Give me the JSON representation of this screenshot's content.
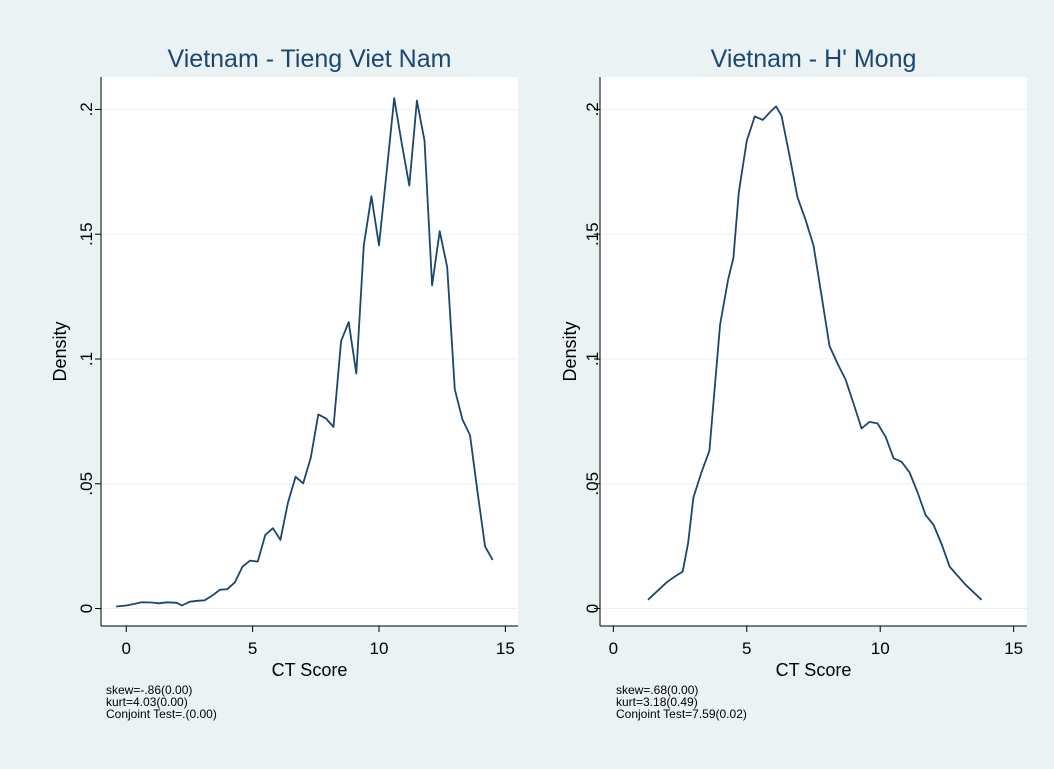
{
  "colors": {
    "outer_background": "#eaf2f3",
    "plot_background": "#ffffff",
    "gridline": "#eaf2f3",
    "line": "#1a476f",
    "text": "#000000"
  },
  "chart_data": [
    {
      "type": "line",
      "title": "Vietnam - Tieng Viet Nam",
      "xlabel": "CT Score",
      "ylabel": "Density",
      "xlim": [
        -1,
        15.5
      ],
      "ylim": [
        -0.007,
        0.213
      ],
      "x_ticks": [
        0,
        5,
        10,
        15
      ],
      "x_tick_labels": [
        "0",
        "5",
        "10",
        "15"
      ],
      "y_ticks": [
        0,
        0.05,
        0.1,
        0.15,
        0.2
      ],
      "y_tick_labels": [
        "0",
        ".05",
        ".1",
        ".15",
        ".2"
      ],
      "grid": true,
      "series": [
        {
          "x": [
            -0.4,
            0,
            0.3,
            0.6,
            1,
            1.3,
            1.6,
            2,
            2.2,
            2.5,
            2.8,
            3.1,
            3.4,
            3.7,
            4,
            4.3,
            4.6,
            4.9,
            5.2,
            5.5,
            5.8,
            6.1,
            6.4,
            6.7,
            7,
            7.3,
            7.6,
            7.9,
            8.2,
            8.5,
            8.8,
            9.1,
            9.4,
            9.7,
            10,
            10.3,
            10.6,
            10.9,
            11.2,
            11.5,
            11.8,
            12.1,
            12.4,
            12.7,
            13,
            13.3,
            13.6,
            13.9,
            14.2,
            14.5
          ],
          "y": [
            0.0008,
            0.0012,
            0.0018,
            0.0025,
            0.0024,
            0.0021,
            0.0025,
            0.0023,
            0.0012,
            0.0027,
            0.0031,
            0.0033,
            0.0052,
            0.0075,
            0.0078,
            0.0105,
            0.0168,
            0.0192,
            0.0188,
            0.0295,
            0.0322,
            0.0275,
            0.0425,
            0.0528,
            0.0502,
            0.0605,
            0.0778,
            0.0762,
            0.0728,
            0.1072,
            0.1148,
            0.0942,
            0.1455,
            0.1652,
            0.1455,
            0.1748,
            0.2045,
            0.1865,
            0.1695,
            0.2035,
            0.1875,
            0.1295,
            0.1512,
            0.1368,
            0.0878,
            0.0758,
            0.0695,
            0.0465,
            0.0248,
            0.0195
          ]
        }
      ],
      "notes": [
        "skew=-.86(0.00)",
        "kurt=4.03(0.00)",
        "Conjoint Test=.(0.00)"
      ]
    },
    {
      "type": "line",
      "title": "Vietnam - H' Mong",
      "xlabel": "CT Score",
      "ylabel": "Density",
      "xlim": [
        -0.5,
        15.5
      ],
      "ylim": [
        -0.007,
        0.213
      ],
      "x_ticks": [
        0,
        5,
        10,
        15
      ],
      "x_tick_labels": [
        "0",
        "5",
        "10",
        "15"
      ],
      "y_ticks": [
        0,
        0.05,
        0.1,
        0.15,
        0.2
      ],
      "y_tick_labels": [
        "0",
        ".05",
        ".1",
        ".15",
        ".2"
      ],
      "grid": true,
      "series": [
        {
          "x": [
            1.3,
            1.6,
            2,
            2.3,
            2.6,
            2.8,
            3,
            3.3,
            3.6,
            3.8,
            4,
            4.3,
            4.5,
            4.7,
            5,
            5.3,
            5.6,
            5.9,
            6.1,
            6.3,
            6.6,
            6.9,
            7.2,
            7.5,
            7.8,
            8.1,
            8.4,
            8.7,
            9,
            9.3,
            9.6,
            9.9,
            10.2,
            10.5,
            10.8,
            11.1,
            11.4,
            11.7,
            12,
            12.3,
            12.6,
            13.2,
            13.8
          ],
          "y": [
            0.0035,
            0.0065,
            0.0105,
            0.0128,
            0.0148,
            0.0262,
            0.0445,
            0.0545,
            0.0632,
            0.0888,
            0.1138,
            0.1318,
            0.1405,
            0.1668,
            0.1875,
            0.1972,
            0.1958,
            0.1992,
            0.2012,
            0.1975,
            0.1815,
            0.1648,
            0.1558,
            0.1455,
            0.1255,
            0.1052,
            0.0982,
            0.0918,
            0.0822,
            0.0722,
            0.0748,
            0.0742,
            0.0688,
            0.0602,
            0.0588,
            0.0545,
            0.0465,
            0.0375,
            0.0335,
            0.0258,
            0.0168,
            0.0095,
            0.0035
          ]
        }
      ],
      "notes": [
        "skew=.68(0.00)",
        "kurt=3.18(0.49)",
        "Conjoint Test=7.59(0.02)"
      ]
    }
  ]
}
